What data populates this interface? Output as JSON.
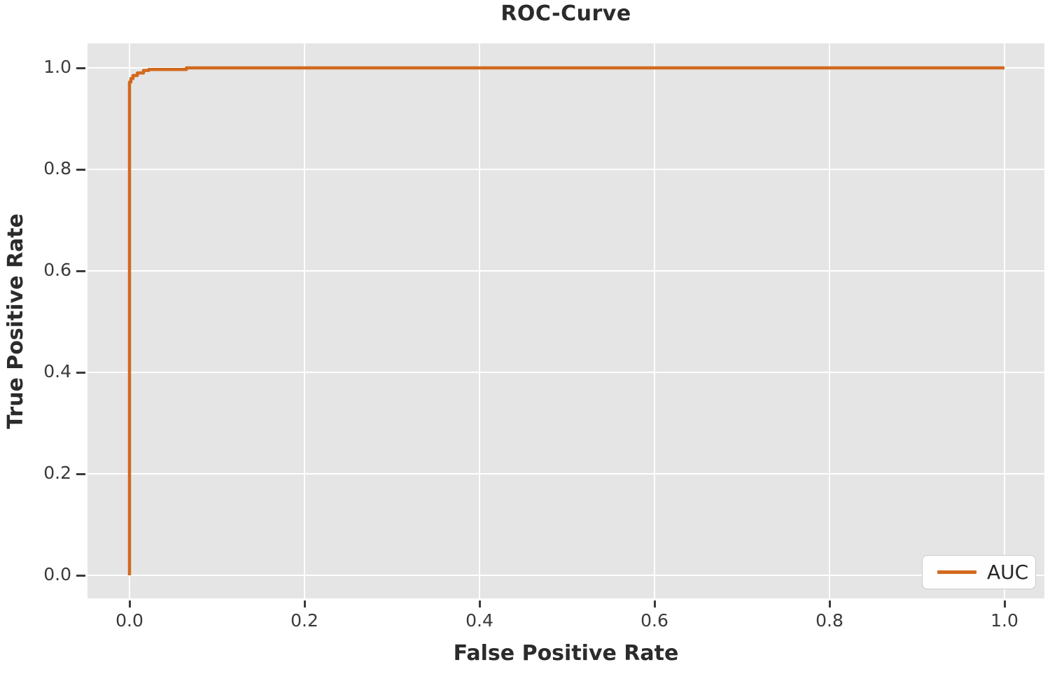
{
  "chart_data": {
    "type": "line",
    "title": "ROC-Curve",
    "xlabel": "False Positive Rate",
    "ylabel": "True Positive Rate",
    "xlim": [
      -0.048,
      1.0456
    ],
    "ylim": [
      -0.0455,
      1.0483
    ],
    "x_ticks": {
      "values": [
        0.0,
        0.2,
        0.4,
        0.6,
        0.8,
        1.0
      ],
      "labels": [
        "0.0",
        "0.2",
        "0.4",
        "0.6",
        "0.8",
        "1.0"
      ]
    },
    "y_ticks": {
      "values": [
        0.0,
        0.2,
        0.4,
        0.6,
        0.8,
        1.0
      ],
      "labels": [
        "0.0",
        "0.2",
        "0.4",
        "0.6",
        "0.8",
        "1.0"
      ]
    },
    "grid": true,
    "plot_background": "#e5e5e5",
    "gridline_color": "#ffffff",
    "legend": {
      "position": "lower right",
      "entries": [
        {
          "label": "AUC",
          "color": "#d2691e"
        }
      ]
    },
    "series": [
      {
        "name": "AUC",
        "color": "#d2691e",
        "line_width": 4.5,
        "x": [
          0.0,
          0.0,
          0.0016,
          0.0016,
          0.004,
          0.004,
          0.009,
          0.009,
          0.016,
          0.016,
          0.022,
          0.022,
          0.065,
          0.065,
          1.0
        ],
        "y": [
          0.0,
          0.972,
          0.972,
          0.979,
          0.979,
          0.985,
          0.985,
          0.99,
          0.99,
          0.995,
          0.995,
          0.997,
          0.997,
          1.0,
          1.0
        ]
      }
    ]
  }
}
